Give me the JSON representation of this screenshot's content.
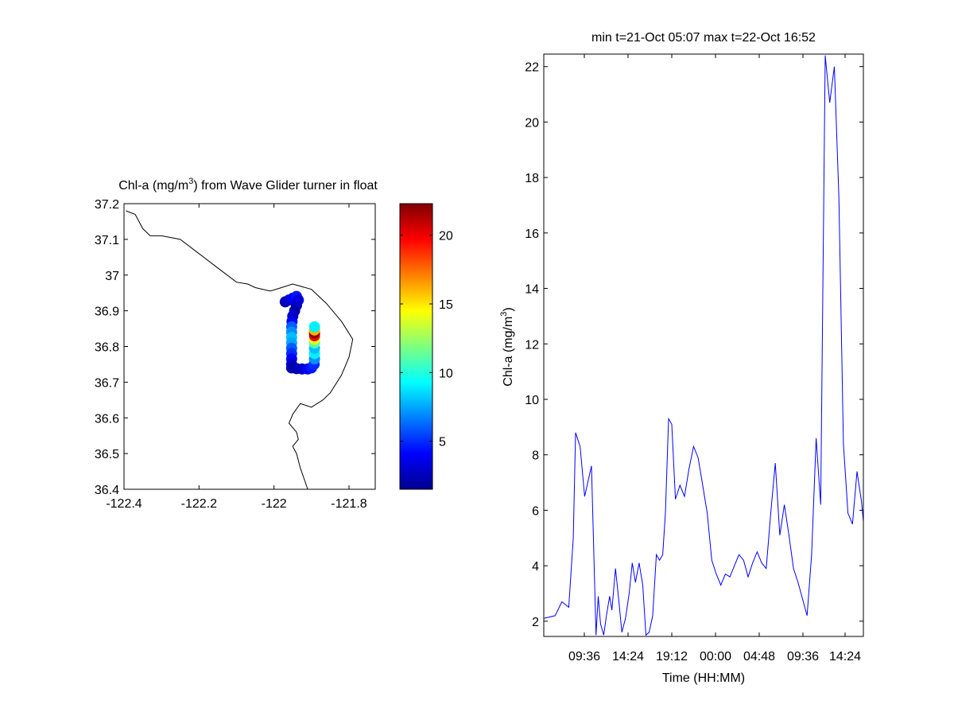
{
  "chart_data": [
    {
      "type": "scatter",
      "subtype": "map-track",
      "title": "Chl-a (mg/m³) from Wave Glider turner in float",
      "title_parts": {
        "pre": "Chl-a (mg/m",
        "sup": "3",
        "post": ") from Wave Glider turner in float"
      },
      "xlim": [
        -122.4,
        -121.73
      ],
      "ylim": [
        36.4,
        37.2
      ],
      "x_ticks": [
        -122.4,
        -122.2,
        -122,
        -121.8
      ],
      "x_tick_labels": [
        "-122.4",
        "-122.2",
        "-122",
        "-121.8"
      ],
      "y_ticks": [
        36.4,
        36.5,
        36.6,
        36.7,
        36.8,
        36.9,
        37,
        37.1,
        37.2
      ],
      "y_tick_labels": [
        "36.4",
        "36.5",
        "36.6",
        "36.7",
        "36.8",
        "36.9",
        "37",
        "37.1",
        "37.2"
      ],
      "grid": false,
      "coastline": [
        [
          -122.395,
          37.18
        ],
        [
          -122.37,
          37.17
        ],
        [
          -122.35,
          37.13
        ],
        [
          -122.33,
          37.11
        ],
        [
          -122.3,
          37.11
        ],
        [
          -122.25,
          37.1
        ],
        [
          -122.2,
          37.06
        ],
        [
          -122.15,
          37.02
        ],
        [
          -122.1,
          36.98
        ],
        [
          -122.07,
          36.975
        ],
        [
          -122.05,
          36.965
        ],
        [
          -122.01,
          36.955
        ],
        [
          -121.98,
          36.965
        ],
        [
          -121.95,
          36.975
        ],
        [
          -121.9,
          36.96
        ],
        [
          -121.86,
          36.92
        ],
        [
          -121.82,
          36.87
        ],
        [
          -121.79,
          36.82
        ],
        [
          -121.8,
          36.77
        ],
        [
          -121.82,
          36.72
        ],
        [
          -121.85,
          36.67
        ],
        [
          -121.87,
          36.65
        ],
        [
          -121.9,
          36.63
        ],
        [
          -121.93,
          36.64
        ],
        [
          -121.95,
          36.61
        ],
        [
          -121.96,
          36.585
        ],
        [
          -121.94,
          36.56
        ],
        [
          -121.935,
          36.54
        ],
        [
          -121.95,
          36.52
        ],
        [
          -121.94,
          36.5
        ],
        [
          -121.93,
          36.46
        ],
        [
          -121.92,
          36.43
        ],
        [
          -121.91,
          36.4
        ]
      ],
      "track": [
        {
          "x": -121.97,
          "y": 36.925,
          "c": 2.5
        },
        {
          "x": -121.96,
          "y": 36.93,
          "c": 3
        },
        {
          "x": -121.95,
          "y": 36.935,
          "c": 4
        },
        {
          "x": -121.94,
          "y": 36.94,
          "c": 4.5
        },
        {
          "x": -121.935,
          "y": 36.93,
          "c": 3.5
        },
        {
          "x": -121.94,
          "y": 36.915,
          "c": 3
        },
        {
          "x": -121.945,
          "y": 36.9,
          "c": 2.5
        },
        {
          "x": -121.95,
          "y": 36.885,
          "c": 3
        },
        {
          "x": -121.952,
          "y": 36.87,
          "c": 4
        },
        {
          "x": -121.953,
          "y": 36.855,
          "c": 6
        },
        {
          "x": -121.953,
          "y": 36.84,
          "c": 7
        },
        {
          "x": -121.953,
          "y": 36.825,
          "c": 8
        },
        {
          "x": -121.953,
          "y": 36.81,
          "c": 7.5
        },
        {
          "x": -121.953,
          "y": 36.795,
          "c": 6
        },
        {
          "x": -121.953,
          "y": 36.78,
          "c": 5
        },
        {
          "x": -121.953,
          "y": 36.765,
          "c": 4
        },
        {
          "x": -121.953,
          "y": 36.75,
          "c": 3
        },
        {
          "x": -121.953,
          "y": 36.74,
          "c": 2.5
        },
        {
          "x": -121.94,
          "y": 36.738,
          "c": 2.5
        },
        {
          "x": -121.925,
          "y": 36.737,
          "c": 3
        },
        {
          "x": -121.91,
          "y": 36.737,
          "c": 4
        },
        {
          "x": -121.9,
          "y": 36.74,
          "c": 4.5
        },
        {
          "x": -121.893,
          "y": 36.75,
          "c": 5
        },
        {
          "x": -121.892,
          "y": 36.765,
          "c": 7
        },
        {
          "x": -121.892,
          "y": 36.78,
          "c": 9
        },
        {
          "x": -121.892,
          "y": 36.795,
          "c": 8
        },
        {
          "x": -121.892,
          "y": 36.81,
          "c": 11
        },
        {
          "x": -121.892,
          "y": 36.82,
          "c": 14
        },
        {
          "x": -121.892,
          "y": 36.83,
          "c": 20
        },
        {
          "x": -121.892,
          "y": 36.838,
          "c": 22
        },
        {
          "x": -121.892,
          "y": 36.846,
          "c": 16
        },
        {
          "x": -121.892,
          "y": 36.855,
          "c": 9
        }
      ],
      "colorbar": {
        "clim": [
          1.5,
          22.3
        ],
        "ticks": [
          5,
          10,
          15,
          20
        ],
        "tick_labels": [
          "5",
          "10",
          "15",
          "20"
        ],
        "colormap": "jet"
      }
    },
    {
      "type": "line",
      "title": "min t=21-Oct 05:07 max t=22-Oct 16:52",
      "xlabel": "Time (HH:MM)",
      "ylabel": "Chl-a (mg/m³)",
      "ylabel_parts": {
        "pre": "Chl-a (mg/m",
        "sup": "3",
        "post": ")"
      },
      "xlim": [
        0,
        704
      ],
      "ylim": [
        1.45,
        22.45
      ],
      "x_ticks": [
        264,
        552,
        840,
        1128,
        1416,
        1704,
        1992
      ],
      "x_ticks_note": "minutes after 21-Oct 05:12",
      "x_tick_labels": [
        "09:36",
        "14:24",
        "19:12",
        "00:00",
        "04:48",
        "09:36",
        "14:24"
      ],
      "y_ticks": [
        2,
        4,
        6,
        8,
        10,
        12,
        14,
        16,
        18,
        20,
        22
      ],
      "y_tick_labels": [
        "2",
        "4",
        "6",
        "8",
        "10",
        "12",
        "14",
        "16",
        "18",
        "20",
        "22"
      ],
      "grid": false,
      "series": [
        {
          "color": "#0000ff",
          "x": [
            0,
            25,
            40,
            55,
            65,
            70,
            80,
            90,
            105,
            115,
            120,
            125,
            132,
            138,
            145,
            150,
            158,
            165,
            172,
            180,
            188,
            195,
            202,
            210,
            218,
            225,
            232,
            240,
            248,
            255,
            262,
            268,
            275,
            282,
            290,
            300,
            310,
            320,
            330,
            340,
            350,
            360,
            370,
            380,
            390,
            400,
            410,
            420,
            430,
            440,
            450,
            460,
            470,
            480,
            490,
            500,
            510,
            520,
            530,
            540,
            550,
            560,
            570,
            580,
            590,
            600,
            610,
            620,
            630,
            640,
            650,
            660,
            670,
            680,
            690,
            700,
            704
          ],
          "y": [
            2.1,
            2.2,
            2.7,
            2.5,
            5,
            8.8,
            8.3,
            6.5,
            7.6,
            1.5,
            2.9,
            1.9,
            1.5,
            2.2,
            2.9,
            2.4,
            3.9,
            2.8,
            1.6,
            2.1,
            3,
            4.1,
            3.4,
            4.1,
            3.3,
            1.5,
            1.6,
            2.2,
            4.4,
            4.2,
            4.4,
            5.9,
            9.3,
            9.1,
            6.4,
            6.9,
            6.5,
            7.5,
            8.3,
            7.9,
            6.9,
            5.9,
            4.2,
            3.7,
            3.3,
            3.7,
            3.6,
            4,
            4.4,
            4.2,
            3.6,
            4.1,
            4.5,
            4.1,
            3.9,
            5.9,
            7.7,
            5.1,
            6.2,
            5.1,
            3.9,
            3.4,
            2.8,
            2.2,
            4.4,
            8.6,
            6.2,
            22.4,
            20.7,
            22,
            17.3,
            8.4,
            5.9,
            5.5,
            7.4,
            6.3,
            5.6
          ]
        }
      ]
    }
  ]
}
